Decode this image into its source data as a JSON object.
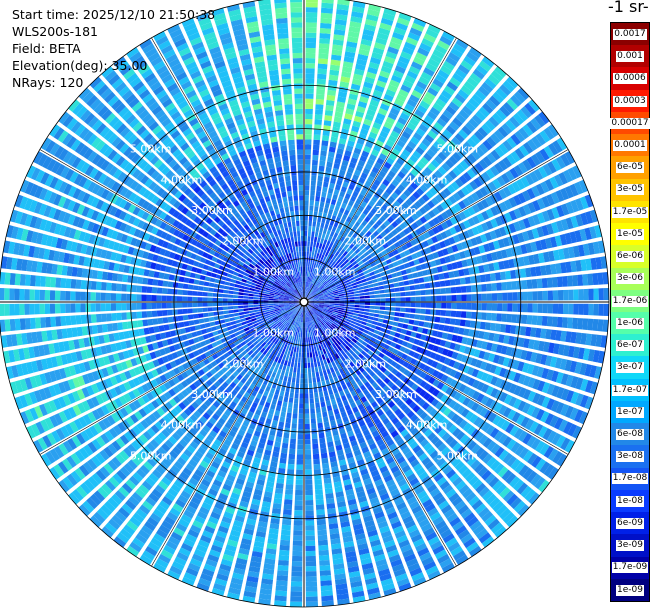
{
  "header": {
    "start_time": "Start time: 2025/12/10 21:50:38",
    "instrument": "WLS200s-181",
    "field": "Field: BETA",
    "elevation": "Elevation(deg): 35.00",
    "nrays": "NRays: 120"
  },
  "colorbar": {
    "title": "-1 sr-",
    "labels": [
      "0.0017",
      "0.001",
      "0.0006",
      "0.0003",
      "0.00017",
      "0.0001",
      "6e-05",
      "3e-05",
      "1.7e-05",
      "1e-05",
      "6e-06",
      "3e-06",
      "1.7e-06",
      "1e-06",
      "6e-07",
      "3e-07",
      "1.7e-07",
      "1e-07",
      "6e-08",
      "3e-08",
      "1.7e-08",
      "1e-08",
      "6e-09",
      "3e-09",
      "1.7e-09",
      "1e-09"
    ],
    "colors": [
      "#8b0000",
      "#b20000",
      "#d80000",
      "#ff1a00",
      "#ff4a00",
      "#ff7800",
      "#ffa000",
      "#ffc400",
      "#ffe400",
      "#ffff00",
      "#d8ff2a",
      "#a8ff58",
      "#7dff82",
      "#55ffaa",
      "#2ef0d0",
      "#10d8f8",
      "#00c0ff",
      "#00a8ff",
      "#2288e8",
      "#1a70f0",
      "#1455f5",
      "#0a3cff",
      "#0020e8",
      "#0010c8",
      "#0000a8",
      "#000080"
    ]
  },
  "ring_labels": [
    "1.00km",
    "2.00km",
    "3.00km",
    "4.00km",
    "5.00km"
  ],
  "scan": {
    "nrays": 120,
    "elevation_deg": 35.0,
    "max_range_km": 5.9
  }
}
